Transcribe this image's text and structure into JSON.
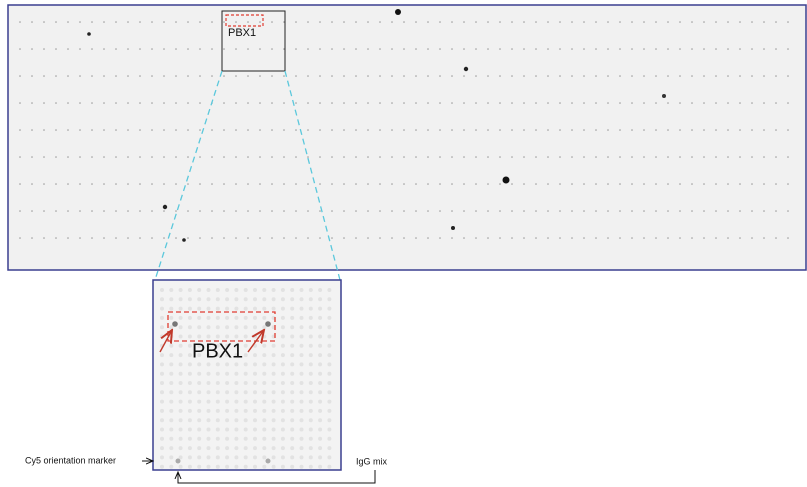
{
  "overview": {
    "label": "PBX1"
  },
  "zoom": {
    "label": "PBX1",
    "left_annotation": "Cy5 orientation marker",
    "right_annotation": "IgG mix"
  }
}
